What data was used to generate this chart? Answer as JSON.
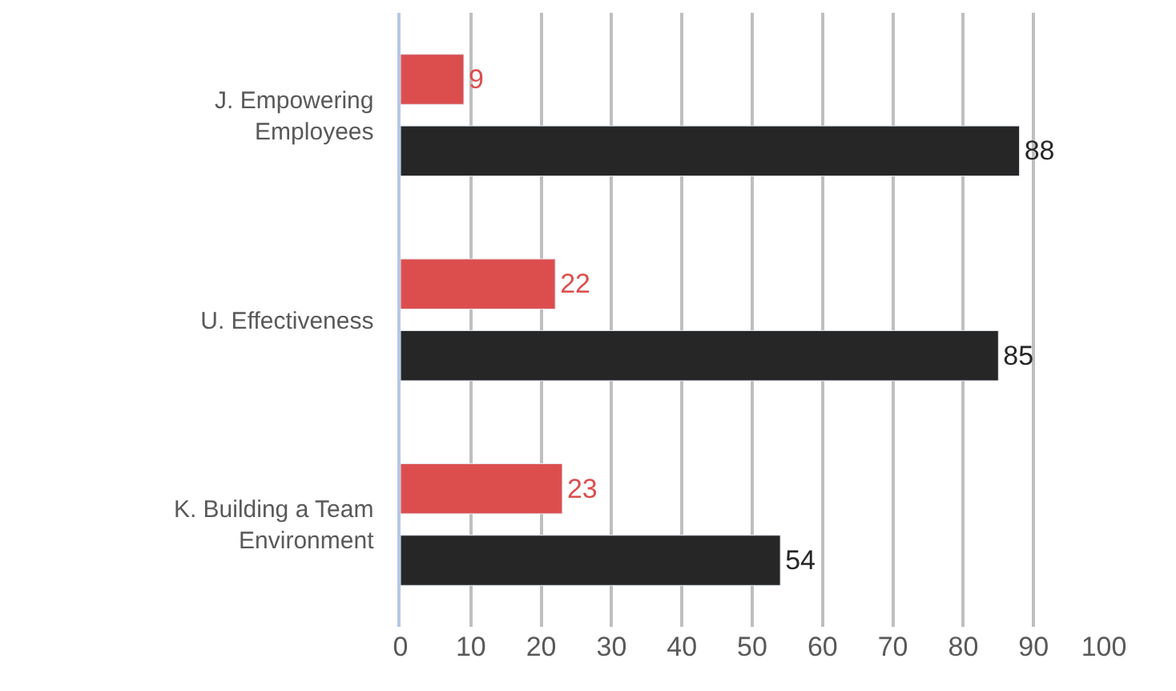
{
  "chart_data": {
    "type": "bar",
    "orientation": "horizontal",
    "categories": [
      "J. Empowering Employees",
      "U. Effectiveness",
      "K. Building a Team Environment"
    ],
    "series": [
      {
        "color": "#dc4e4e",
        "values": [
          9,
          22,
          23
        ]
      },
      {
        "color": "#262626",
        "values": [
          88,
          85,
          54
        ]
      }
    ],
    "xlim": [
      0,
      100
    ],
    "xticks": [
      0,
      10,
      20,
      30,
      40,
      50,
      60,
      70,
      80,
      90,
      100
    ],
    "grid": "x",
    "data_labels": true,
    "legend": false
  }
}
